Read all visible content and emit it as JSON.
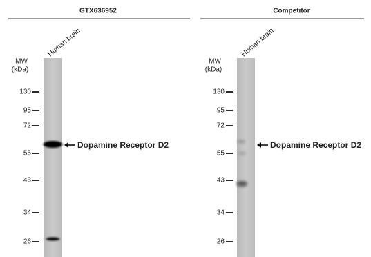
{
  "panels": [
    {
      "title": "GTX636952",
      "lane_label": "Human brain",
      "mw_label": [
        "MW",
        "(kDa)"
      ],
      "markers": [
        "130",
        "95",
        "72",
        "55",
        "43",
        "34",
        "26"
      ],
      "annotation": "Dopamine Receptor D2"
    },
    {
      "title": "Competitor",
      "lane_label": "Human brain",
      "mw_label": [
        "MW",
        "(kDa)"
      ],
      "markers": [
        "130",
        "95",
        "72",
        "55",
        "43",
        "34",
        "26"
      ],
      "annotation": "Dopamine Receptor D2"
    }
  ]
}
